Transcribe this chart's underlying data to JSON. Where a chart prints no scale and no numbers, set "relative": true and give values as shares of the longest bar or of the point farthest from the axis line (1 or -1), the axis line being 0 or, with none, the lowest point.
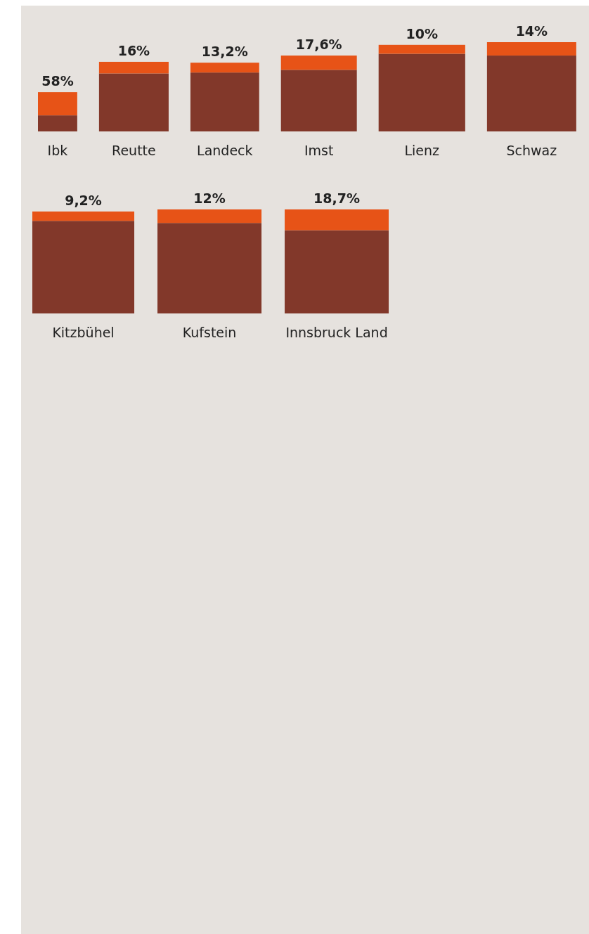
{
  "chart_data": [
    {
      "type": "bar",
      "stacked": true,
      "relative": true,
      "categories": [
        "Ibk",
        "Reutte",
        "Landeck",
        "Imst",
        "Lienz",
        "Schwaz"
      ],
      "series": [
        {
          "color": "#82382a",
          "values": [
            0.18,
            0.65,
            0.66,
            0.69,
            0.87,
            0.85
          ]
        },
        {
          "color": "#e75317",
          "values": [
            0.26,
            0.13,
            0.11,
            0.16,
            0.1,
            0.15
          ]
        }
      ],
      "annotations": [
        {
          "text": "58%",
          "x": "Ibk",
          "y": 0.44
        },
        {
          "text": "16%",
          "x": "Reutte",
          "y": 0.78
        },
        {
          "text": "13,2%",
          "x": "Landeck",
          "y": 0.77
        },
        {
          "text": "17,6%",
          "x": "Imst",
          "y": 0.85
        },
        {
          "text": "10%",
          "x": "Lienz",
          "y": 0.97
        },
        {
          "text": "14%",
          "x": "Schwaz",
          "y": 1.0
        }
      ]
    },
    {
      "type": "bar",
      "stacked": true,
      "relative": true,
      "categories": [
        "Kitzbühel",
        "Kufstein",
        "Innsbruck Land"
      ],
      "series": [
        {
          "color": "#82382a",
          "values": [
            0.89,
            0.87,
            0.8
          ]
        },
        {
          "color": "#e75317",
          "values": [
            0.09,
            0.13,
            0.2
          ]
        }
      ],
      "annotations": [
        {
          "text": "9,2%",
          "x": "Kitzbühel",
          "y": 0.98
        },
        {
          "text": "12%",
          "x": "Kufstein",
          "y": 1.0
        },
        {
          "text": "18,7%",
          "x": "Innsbruck Land",
          "y": 1.0
        }
      ]
    }
  ]
}
